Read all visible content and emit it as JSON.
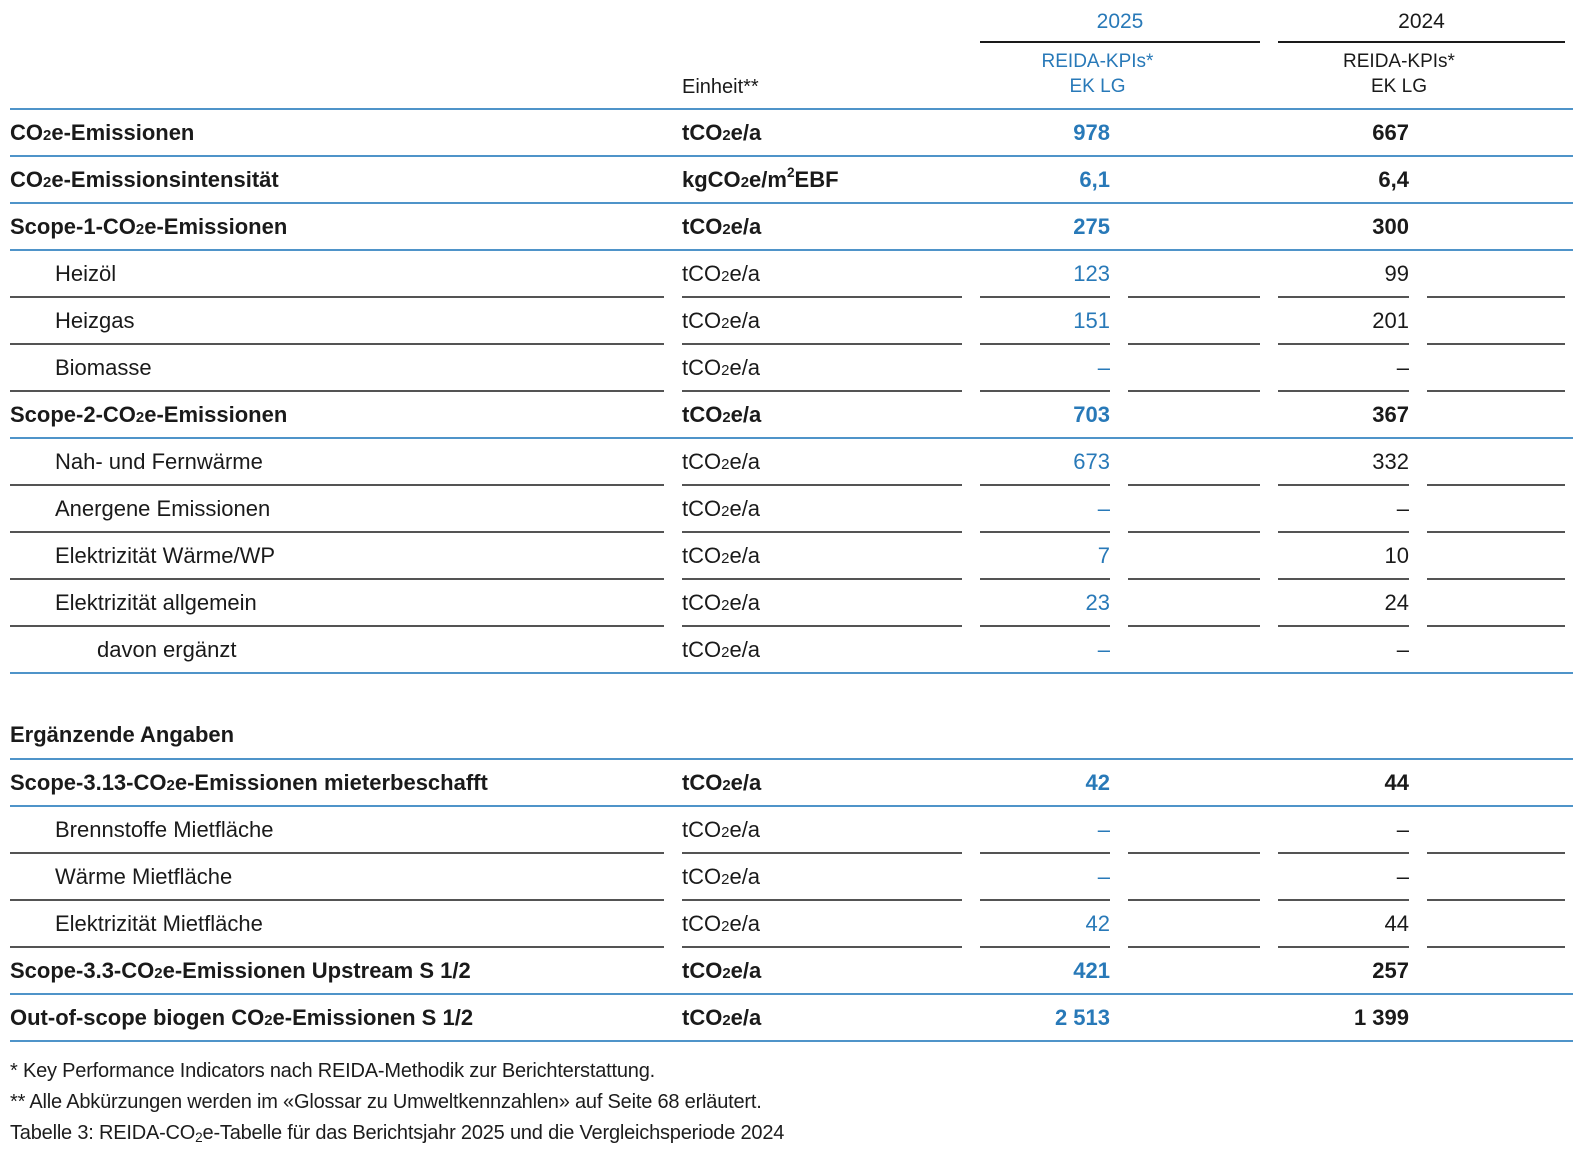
{
  "header": {
    "unit_label": "Einheit**",
    "groups": [
      {
        "year": "2025",
        "sub1": "REIDA-KPIs*",
        "sub2": "EK LG"
      },
      {
        "year": "2024",
        "sub1": "REIDA-KPIs*",
        "sub2": "EK LG"
      }
    ]
  },
  "rows": [
    {
      "label": "CO2e-Emissionen",
      "unit": "tCO2e/a",
      "v2025": "978",
      "v2024": "667",
      "emphasis": true,
      "indent": 0,
      "rule": "blue"
    },
    {
      "label": "CO2e-Emissionsintensität",
      "unit": "kgCO2e/m2 EBF",
      "v2025": "6,1",
      "v2024": "6,4",
      "emphasis": true,
      "indent": 0,
      "rule": "blue"
    },
    {
      "label": "Scope-1-CO2e-Emissionen",
      "unit": "tCO2e/a",
      "v2025": "275",
      "v2024": "300",
      "emphasis": true,
      "indent": 0,
      "rule": "blue"
    },
    {
      "label": "Heizöl",
      "unit": "tCO2e/a",
      "v2025": "123",
      "v2024": "99",
      "emphasis": false,
      "indent": 1,
      "rule": "gray"
    },
    {
      "label": "Heizgas",
      "unit": "tCO2e/a",
      "v2025": "151",
      "v2024": "201",
      "emphasis": false,
      "indent": 1,
      "rule": "gray"
    },
    {
      "label": "Biomasse",
      "unit": "tCO2e/a",
      "v2025": "–",
      "v2024": "–",
      "emphasis": false,
      "indent": 1,
      "rule": "gray"
    },
    {
      "label": "Scope-2-CO2e-Emissionen",
      "unit": "tCO2e/a",
      "v2025": "703",
      "v2024": "367",
      "emphasis": true,
      "indent": 0,
      "rule": "blue"
    },
    {
      "label": "Nah- und Fernwärme",
      "unit": "tCO2e/a",
      "v2025": "673",
      "v2024": "332",
      "emphasis": false,
      "indent": 1,
      "rule": "gray"
    },
    {
      "label": "Anergene Emissionen",
      "unit": "tCO2e/a",
      "v2025": "–",
      "v2024": "–",
      "emphasis": false,
      "indent": 1,
      "rule": "gray"
    },
    {
      "label": "Elektrizität Wärme/WP",
      "unit": "tCO2e/a",
      "v2025": "7",
      "v2024": "10",
      "emphasis": false,
      "indent": 1,
      "rule": "gray"
    },
    {
      "label": "Elektrizität allgemein",
      "unit": "tCO2e/a",
      "v2025": "23",
      "v2024": "24",
      "emphasis": false,
      "indent": 1,
      "rule": "gray"
    },
    {
      "label": "davon ergänzt",
      "unit": "tCO2e/a",
      "v2025": "–",
      "v2024": "–",
      "emphasis": false,
      "indent": 2,
      "rule": "blue"
    }
  ],
  "section2": {
    "heading": "Ergänzende Angaben",
    "rows": [
      {
        "label": "Scope-3.13-CO2e-Emissionen mieterbeschafft",
        "unit": "tCO2e/a",
        "v2025": "42",
        "v2024": "44",
        "emphasis": true,
        "indent": 0,
        "rule": "blue"
      },
      {
        "label": "Brennstoffe Mietfläche",
        "unit": "tCO2e/a",
        "v2025": "–",
        "v2024": "–",
        "emphasis": false,
        "indent": 1,
        "rule": "gray"
      },
      {
        "label": "Wärme Mietfläche",
        "unit": "tCO2e/a",
        "v2025": "–",
        "v2024": "–",
        "emphasis": false,
        "indent": 1,
        "rule": "gray"
      },
      {
        "label": "Elektrizität Mietfläche",
        "unit": "tCO2e/a",
        "v2025": "42",
        "v2024": "44",
        "emphasis": false,
        "indent": 1,
        "rule": "gray"
      },
      {
        "label": "Scope-3.3-CO2e-Emissionen Upstream S 1/2",
        "unit": "tCO2e/a",
        "v2025": "421",
        "v2024": "257",
        "emphasis": true,
        "indent": 0,
        "rule": "blue"
      },
      {
        "label": "Out-of-scope biogen CO2e-Emissionen S 1/2",
        "unit": "tCO2e/a",
        "v2025": "2 513",
        "v2024": "1 399",
        "emphasis": true,
        "indent": 0,
        "rule": "blue"
      }
    ]
  },
  "footnotes": [
    "* Key Performance Indicators nach REIDA-Methodik zur Berichterstattung.",
    "** Alle Abkürzungen werden im «Glossar zu Umweltkennzahlen» auf Seite 68 erläutert."
  ],
  "caption": "Tabelle 3: REIDA-CO2e-Tabelle für das Berichtsjahr 2025 und die Vergleichsperiode 2024",
  "colors": {
    "accent_blue": "#2879b8",
    "rule_blue": "#4f94c9",
    "rule_gray": "#545454",
    "rule_black": "#1a1a1a",
    "text": "#1a1a1a"
  }
}
